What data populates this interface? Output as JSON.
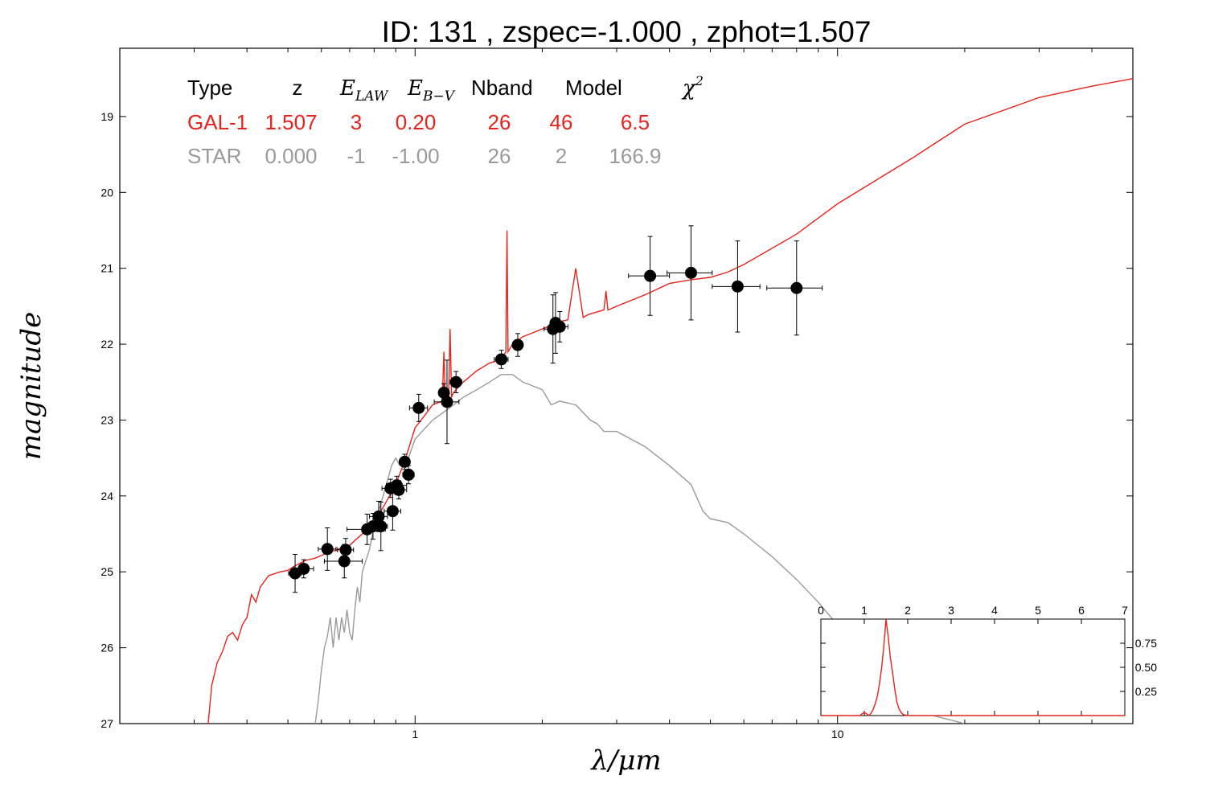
{
  "chart_data": {
    "type": "scatter",
    "title": "ID:  131   , zspec=-1.000 , zphot=1.507",
    "xlabel": "λ/μm",
    "ylabel": "magnitude",
    "x_scale": "log",
    "xlim": [
      0.2,
      50
    ],
    "ylim": [
      18.1,
      27
    ],
    "y_inverted": true,
    "x_ticks": [
      1,
      10
    ],
    "y_ticks": [
      19,
      20,
      21,
      22,
      23,
      24,
      25,
      26,
      27
    ],
    "table": {
      "headers": [
        "Type",
        "z",
        "E_LAW",
        "E_B−V",
        "Nband",
        "Model",
        "χ²"
      ],
      "rows": [
        {
          "name": "GAL-1",
          "color": "#e8231c",
          "values": [
            "GAL-1",
            "1.507",
            "3",
            "0.20",
            "26",
            "46",
            "6.5"
          ]
        },
        {
          "name": "STAR",
          "color": "#9a9a9a",
          "values": [
            "STAR",
            "0.000",
            "-1",
            "-1.00",
            "26",
            "2",
            "166.9"
          ]
        }
      ]
    },
    "points": [
      {
        "x": 0.52,
        "y": 25.02,
        "xerr": 0.018,
        "yerr": 0.25
      },
      {
        "x": 0.545,
        "y": 24.96,
        "xerr": 0.03,
        "yerr": 0.12
      },
      {
        "x": 0.62,
        "y": 24.7,
        "xerr": 0.03,
        "yerr": 0.28
      },
      {
        "x": 0.68,
        "y": 24.86,
        "xerr": 0.07,
        "yerr": 0.22
      },
      {
        "x": 0.685,
        "y": 24.71,
        "xerr": 0.03,
        "yerr": 0.15
      },
      {
        "x": 0.77,
        "y": 24.44,
        "xerr": 0.08,
        "yerr": 0.2
      },
      {
        "x": 0.795,
        "y": 24.4,
        "xerr": 0.03,
        "yerr": 0.17
      },
      {
        "x": 0.82,
        "y": 24.27,
        "xerr": 0.04,
        "yerr": 0.2
      },
      {
        "x": 0.83,
        "y": 24.4,
        "xerr": 0.03,
        "yerr": 0.32
      },
      {
        "x": 0.875,
        "y": 23.9,
        "xerr": 0.04,
        "yerr": 0.12
      },
      {
        "x": 0.885,
        "y": 24.2,
        "xerr": 0.04,
        "yerr": 0.25
      },
      {
        "x": 0.905,
        "y": 23.86,
        "xerr": 0.05,
        "yerr": 0.12
      },
      {
        "x": 0.915,
        "y": 23.92,
        "xerr": 0.04,
        "yerr": 0.12
      },
      {
        "x": 0.945,
        "y": 23.55,
        "xerr": 0.02,
        "yerr": 0.1
      },
      {
        "x": 0.965,
        "y": 23.72,
        "xerr": 0.03,
        "yerr": 0.12
      },
      {
        "x": 1.02,
        "y": 22.84,
        "xerr": 0.05,
        "yerr": 0.18
      },
      {
        "x": 1.17,
        "y": 22.64,
        "xerr": 0.03,
        "yerr": 0.12
      },
      {
        "x": 1.19,
        "y": 22.76,
        "xerr": 0.08,
        "yerr": 0.55
      },
      {
        "x": 1.25,
        "y": 22.5,
        "xerr": 0.04,
        "yerr": 0.14
      },
      {
        "x": 1.6,
        "y": 22.2,
        "xerr": 0.06,
        "yerr": 0.12
      },
      {
        "x": 1.75,
        "y": 22.01,
        "xerr": 0.04,
        "yerr": 0.15
      },
      {
        "x": 2.12,
        "y": 21.8,
        "xerr": 0.1,
        "yerr": 0.45
      },
      {
        "x": 2.15,
        "y": 21.72,
        "xerr": 0.06,
        "yerr": 0.4
      },
      {
        "x": 2.2,
        "y": 21.77,
        "xerr": 0.1,
        "yerr": 0.2
      },
      {
        "x": 3.6,
        "y": 21.1,
        "xerr": 0.4,
        "yerr": 0.52
      },
      {
        "x": 4.5,
        "y": 21.06,
        "xerr": 0.55,
        "yerr": 0.62
      },
      {
        "x": 5.8,
        "y": 21.24,
        "xerr": 0.75,
        "yerr": 0.6
      },
      {
        "x": 8.0,
        "y": 21.26,
        "xerr": 1.2,
        "yerr": 0.62
      }
    ],
    "series": [
      {
        "name": "GAL-1",
        "color": "#e8231c",
        "x": [
          0.32,
          0.325,
          0.33,
          0.34,
          0.35,
          0.36,
          0.37,
          0.38,
          0.39,
          0.4,
          0.41,
          0.42,
          0.43,
          0.45,
          0.48,
          0.5,
          0.52,
          0.55,
          0.58,
          0.62,
          0.66,
          0.7,
          0.75,
          0.8,
          0.85,
          0.9,
          0.95,
          1.0,
          1.05,
          1.1,
          1.16,
          1.17,
          1.18,
          1.2,
          1.21,
          1.22,
          1.23,
          1.25,
          1.3,
          1.4,
          1.5,
          1.6,
          1.64,
          1.65,
          1.66,
          1.68,
          1.7,
          1.8,
          1.9,
          2.0,
          2.1,
          2.2,
          2.3,
          2.4,
          2.5,
          2.55,
          2.6,
          2.8,
          2.83,
          2.86,
          3.0,
          3.5,
          4.0,
          4.5,
          5.0,
          5.5,
          6.0,
          8.0,
          10.0,
          15.0,
          20.0,
          30.0,
          40.0,
          50.0
        ],
        "y": [
          27.3,
          26.9,
          26.5,
          26.2,
          26.05,
          25.85,
          25.8,
          25.9,
          25.7,
          25.6,
          25.3,
          25.4,
          25.2,
          25.05,
          25.0,
          24.98,
          24.92,
          24.85,
          24.82,
          24.75,
          24.7,
          24.65,
          24.5,
          24.35,
          24.1,
          23.85,
          23.5,
          23.1,
          22.95,
          22.8,
          22.75,
          22.1,
          22.75,
          22.7,
          21.8,
          22.7,
          22.65,
          22.6,
          22.5,
          22.35,
          22.25,
          22.2,
          22.1,
          20.5,
          22.1,
          22.05,
          22.0,
          21.9,
          21.85,
          21.8,
          21.75,
          21.7,
          21.68,
          21.0,
          21.65,
          21.62,
          21.6,
          21.55,
          21.3,
          21.55,
          21.5,
          21.35,
          21.2,
          21.15,
          21.12,
          21.05,
          20.95,
          20.55,
          20.15,
          19.55,
          19.1,
          18.75,
          18.6,
          18.5
        ]
      },
      {
        "name": "STAR",
        "color": "#9a9a9a",
        "x": [
          0.58,
          0.59,
          0.6,
          0.61,
          0.62,
          0.63,
          0.64,
          0.65,
          0.66,
          0.67,
          0.68,
          0.69,
          0.7,
          0.71,
          0.72,
          0.73,
          0.74,
          0.75,
          0.78,
          0.8,
          0.82,
          0.84,
          0.86,
          0.88,
          0.9,
          0.92,
          0.95,
          1.0,
          1.1,
          1.2,
          1.3,
          1.4,
          1.5,
          1.6,
          1.7,
          1.8,
          1.9,
          2.0,
          2.1,
          2.2,
          2.4,
          2.6,
          2.7,
          2.8,
          3.0,
          3.5,
          4.0,
          4.5,
          4.8,
          5.0,
          5.5,
          6.0,
          7.0,
          8.0,
          9.0,
          10.0,
          12.0,
          15.0,
          17.0,
          20.0
        ],
        "y": [
          27.0,
          26.7,
          26.3,
          26.0,
          25.85,
          25.6,
          26.0,
          25.6,
          25.9,
          25.6,
          25.8,
          25.5,
          25.8,
          25.9,
          25.5,
          25.2,
          25.4,
          25.0,
          24.7,
          24.4,
          24.2,
          24.0,
          23.8,
          23.6,
          23.5,
          23.6,
          23.6,
          23.25,
          23.0,
          22.85,
          22.7,
          22.6,
          22.5,
          22.4,
          22.4,
          22.5,
          22.55,
          22.6,
          22.8,
          22.75,
          22.8,
          23.0,
          23.05,
          23.15,
          23.15,
          23.35,
          23.6,
          23.85,
          24.2,
          24.3,
          24.35,
          24.5,
          24.8,
          25.1,
          25.4,
          25.7,
          26.15,
          26.6,
          26.9,
          27.0
        ]
      }
    ],
    "inset": {
      "xlim": [
        0,
        7
      ],
      "x_ticks": [
        0,
        1,
        2,
        3,
        4,
        5,
        6,
        7
      ],
      "ylim": [
        0,
        1.0
      ],
      "y_ticks": [
        0.25,
        0.5,
        0.75
      ],
      "y_tick_labels": [
        "0.25",
        "0.50",
        "0.75"
      ],
      "pdz_color": "#e8231c",
      "pdz": {
        "x": [
          0,
          0.9,
          0.95,
          1.0,
          1.05,
          1.1,
          1.15,
          1.2,
          1.25,
          1.3,
          1.35,
          1.4,
          1.45,
          1.5,
          1.55,
          1.6,
          1.65,
          1.7,
          1.75,
          1.8,
          1.85,
          1.9,
          2.0,
          7.0
        ],
        "y": [
          0,
          0,
          0.02,
          0.03,
          0.02,
          0.0,
          0.02,
          0.06,
          0.12,
          0.2,
          0.33,
          0.5,
          0.72,
          1.0,
          0.82,
          0.6,
          0.45,
          0.28,
          0.14,
          0.07,
          0.03,
          0.01,
          0.0,
          0.0
        ]
      }
    }
  }
}
